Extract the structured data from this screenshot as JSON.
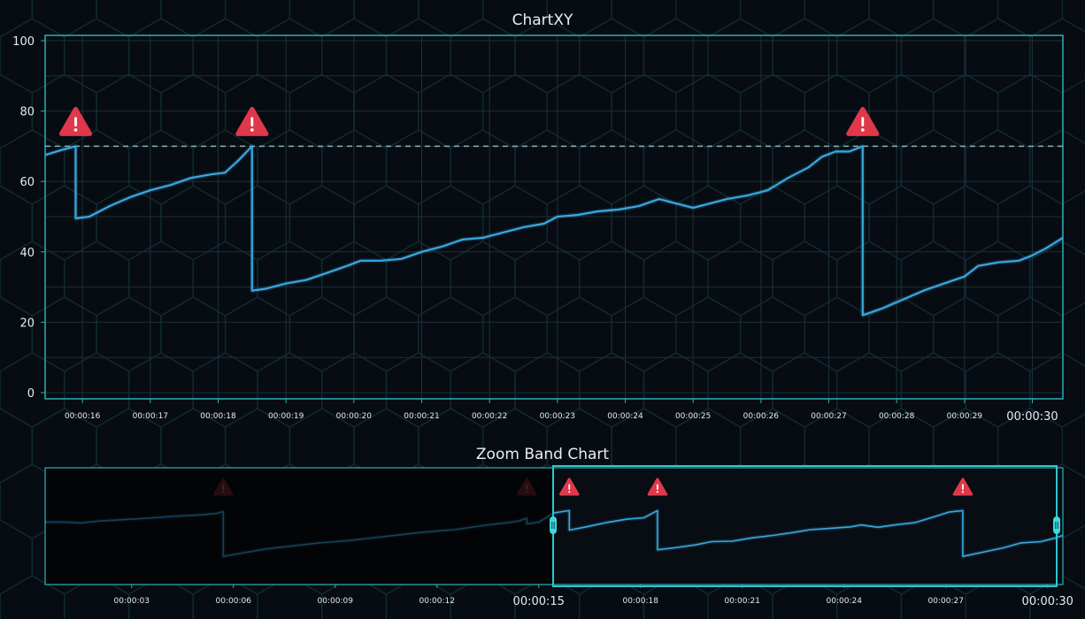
{
  "chart_data": [
    {
      "type": "line",
      "title": "ChartXY",
      "xlabel": "",
      "ylabel": "",
      "xlim": [
        15.45,
        30.45
      ],
      "ylim": [
        0,
        100
      ],
      "yticks": [
        "0",
        "20",
        "40",
        "60",
        "80",
        "100"
      ],
      "xticks": [
        {
          "t": 16,
          "label": "00:00:16"
        },
        {
          "t": 17,
          "label": "00:00:17"
        },
        {
          "t": 18,
          "label": "00:00:18"
        },
        {
          "t": 19,
          "label": "00:00:19"
        },
        {
          "t": 20,
          "label": "00:00:20"
        },
        {
          "t": 21,
          "label": "00:00:21"
        },
        {
          "t": 22,
          "label": "00:00:22"
        },
        {
          "t": 23,
          "label": "00:00:23"
        },
        {
          "t": 24,
          "label": "00:00:24"
        },
        {
          "t": 25,
          "label": "00:00:25"
        },
        {
          "t": 26,
          "label": "00:00:26"
        },
        {
          "t": 27,
          "label": "00:00:27"
        },
        {
          "t": 28,
          "label": "00:00:28"
        },
        {
          "t": 29,
          "label": "00:00:29"
        },
        {
          "t": 30,
          "label": "00:00:30",
          "major": true
        }
      ],
      "threshold": 70,
      "alerts": [
        15.9,
        18.5,
        27.5
      ],
      "series": [
        {
          "color": "#39a8e0",
          "points": [
            [
              15.45,
              67.5
            ],
            [
              15.7,
              69
            ],
            [
              15.9,
              70
            ],
            [
              15.9,
              49.5
            ],
            [
              16.1,
              50
            ],
            [
              16.4,
              53
            ],
            [
              16.7,
              55.5
            ],
            [
              17.0,
              57.5
            ],
            [
              17.3,
              59
            ],
            [
              17.6,
              61
            ],
            [
              17.9,
              62
            ],
            [
              18.1,
              62.5
            ],
            [
              18.3,
              66
            ],
            [
              18.5,
              70
            ],
            [
              18.5,
              29
            ],
            [
              18.7,
              29.5
            ],
            [
              19.0,
              31
            ],
            [
              19.3,
              32
            ],
            [
              19.6,
              34
            ],
            [
              19.9,
              36
            ],
            [
              20.1,
              37.5
            ],
            [
              20.4,
              37.5
            ],
            [
              20.7,
              38
            ],
            [
              21.0,
              40
            ],
            [
              21.3,
              41.5
            ],
            [
              21.6,
              43.5
            ],
            [
              21.9,
              44
            ],
            [
              22.2,
              45.5
            ],
            [
              22.5,
              47
            ],
            [
              22.8,
              48
            ],
            [
              23.0,
              50
            ],
            [
              23.3,
              50.5
            ],
            [
              23.6,
              51.5
            ],
            [
              23.9,
              52
            ],
            [
              24.2,
              53
            ],
            [
              24.5,
              55
            ],
            [
              24.8,
              53.5
            ],
            [
              25.0,
              52.5
            ],
            [
              25.2,
              53.5
            ],
            [
              25.5,
              55
            ],
            [
              25.8,
              56
            ],
            [
              26.1,
              57.5
            ],
            [
              26.4,
              61
            ],
            [
              26.7,
              64
            ],
            [
              26.9,
              67
            ],
            [
              27.1,
              68.5
            ],
            [
              27.3,
              68.5
            ],
            [
              27.5,
              70
            ],
            [
              27.5,
              22
            ],
            [
              27.8,
              24
            ],
            [
              28.1,
              26.5
            ],
            [
              28.4,
              29
            ],
            [
              28.7,
              31
            ],
            [
              29.0,
              33
            ],
            [
              29.2,
              36
            ],
            [
              29.5,
              37
            ],
            [
              29.8,
              37.5
            ],
            [
              30.0,
              39
            ],
            [
              30.2,
              41
            ],
            [
              30.45,
              44
            ]
          ]
        }
      ]
    },
    {
      "type": "line",
      "title": "Zoom Band Chart",
      "xlabel": "",
      "ylabel": "",
      "xlim": [
        0.45,
        30.45
      ],
      "ylim": [
        0,
        100
      ],
      "selected_range": [
        15.45,
        30.45
      ],
      "xticks": [
        {
          "t": 3,
          "label": "00:00:03"
        },
        {
          "t": 6,
          "label": "00:00:06"
        },
        {
          "t": 9,
          "label": "00:00:09"
        },
        {
          "t": 12,
          "label": "00:00:12"
        },
        {
          "t": 15,
          "label": "00:00:15",
          "major": true
        },
        {
          "t": 18,
          "label": "00:00:18"
        },
        {
          "t": 21,
          "label": "00:00:21"
        },
        {
          "t": 24,
          "label": "00:00:24"
        },
        {
          "t": 27,
          "label": "00:00:27"
        },
        {
          "t": 30,
          "label": "00:00:30",
          "major": true
        }
      ],
      "alerts": [
        5.7,
        14.65,
        15.9,
        18.5,
        27.5
      ],
      "series": [
        {
          "color": "#39a8e0",
          "points": [
            [
              0.45,
              58
            ],
            [
              1.0,
              58
            ],
            [
              1.5,
              57
            ],
            [
              2.0,
              59
            ],
            [
              2.5,
              60
            ],
            [
              3.0,
              61
            ],
            [
              3.5,
              62
            ],
            [
              4.0,
              63.5
            ],
            [
              4.5,
              64.5
            ],
            [
              5.0,
              65.5
            ],
            [
              5.5,
              67
            ],
            [
              5.7,
              69
            ],
            [
              5.7,
              22
            ],
            [
              6.0,
              24
            ],
            [
              6.5,
              27
            ],
            [
              7.0,
              30
            ],
            [
              7.5,
              32
            ],
            [
              8.0,
              34
            ],
            [
              8.5,
              36
            ],
            [
              9.0,
              37.5
            ],
            [
              9.5,
              39
            ],
            [
              10.0,
              41
            ],
            [
              10.5,
              43
            ],
            [
              11.0,
              45
            ],
            [
              11.5,
              47
            ],
            [
              12.0,
              48.5
            ],
            [
              12.5,
              50
            ],
            [
              13.0,
              52.5
            ],
            [
              13.5,
              55
            ],
            [
              14.0,
              57
            ],
            [
              14.4,
              59
            ],
            [
              14.65,
              62
            ],
            [
              14.65,
              56
            ],
            [
              15.0,
              58
            ],
            [
              15.45,
              67.5
            ],
            [
              15.7,
              69
            ],
            [
              15.9,
              70
            ],
            [
              15.9,
              49.5
            ],
            [
              16.4,
              53
            ],
            [
              17.0,
              57.5
            ],
            [
              17.6,
              61
            ],
            [
              18.1,
              62.5
            ],
            [
              18.5,
              70
            ],
            [
              18.5,
              29
            ],
            [
              19.0,
              31
            ],
            [
              19.6,
              34
            ],
            [
              20.1,
              37.5
            ],
            [
              20.7,
              38
            ],
            [
              21.3,
              41.5
            ],
            [
              21.9,
              44
            ],
            [
              22.5,
              47
            ],
            [
              23.0,
              50
            ],
            [
              23.6,
              51.5
            ],
            [
              24.2,
              53
            ],
            [
              24.5,
              55
            ],
            [
              25.0,
              52.5
            ],
            [
              25.5,
              55
            ],
            [
              26.1,
              57.5
            ],
            [
              26.7,
              64
            ],
            [
              27.1,
              68.5
            ],
            [
              27.5,
              70
            ],
            [
              27.5,
              22
            ],
            [
              28.1,
              26.5
            ],
            [
              28.7,
              31
            ],
            [
              29.2,
              36
            ],
            [
              29.8,
              37.5
            ],
            [
              30.2,
              41
            ],
            [
              30.45,
              44
            ]
          ]
        }
      ]
    }
  ]
}
